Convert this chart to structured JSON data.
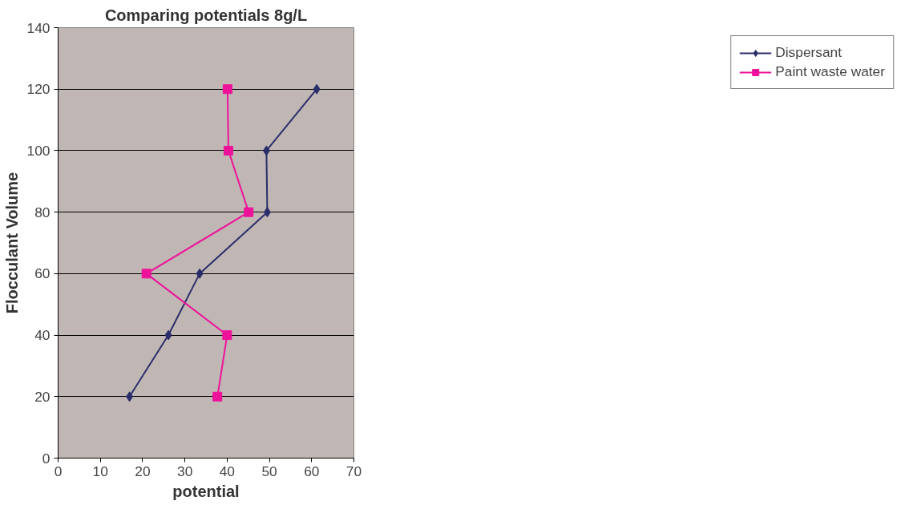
{
  "chart_data": {
    "type": "line",
    "title": "Comparing potentials 8g/L",
    "xlabel": "potential",
    "ylabel": "Flocculant Volume",
    "xlim": [
      0,
      70
    ],
    "xticks": [
      0,
      10,
      20,
      30,
      40,
      50,
      60,
      70
    ],
    "ylim": [
      0,
      140
    ],
    "yticks": [
      0,
      20,
      40,
      60,
      80,
      100,
      120,
      140
    ],
    "grid": "y",
    "legend": "right",
    "series": [
      {
        "name": "Dispersant",
        "color": "#2b2d6b",
        "marker": "diamond",
        "x": [
          16.9,
          26.1,
          33.5,
          49.5,
          49.3,
          61.2
        ],
        "values": [
          20,
          40,
          60,
          80,
          100,
          120
        ]
      },
      {
        "name": "Paint waste water",
        "color": "#ee1199",
        "marker": "square",
        "x": [
          37.7,
          40.0,
          20.9,
          45.1,
          40.3,
          40.1
        ],
        "values": [
          20,
          40,
          60,
          80,
          100,
          120
        ]
      }
    ]
  }
}
